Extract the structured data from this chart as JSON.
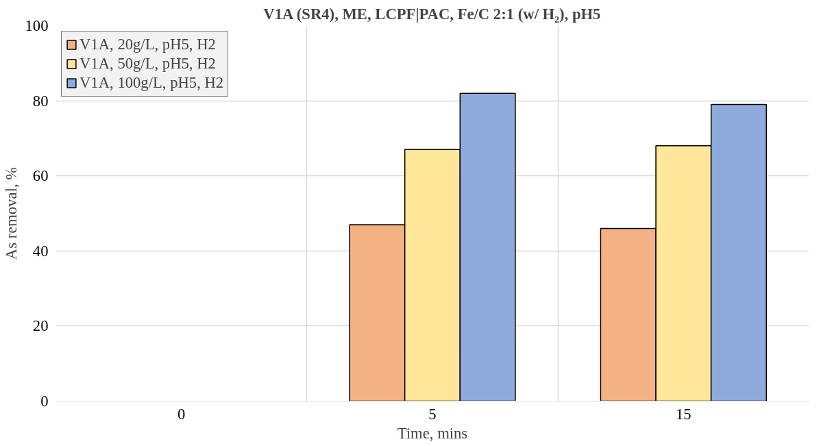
{
  "chart_data": {
    "type": "bar",
    "title": "V1A (SR4), ME, LCPF|PAC, Fe/C 2:1 (w/ H₂), pH5",
    "xlabel": "Time, mins",
    "ylabel": "As removal, %",
    "categories": [
      "0",
      "5",
      "15"
    ],
    "series": [
      {
        "name": "V1A, 20g/L, pH5, H2",
        "color": "#f4b183",
        "values": [
          null,
          47,
          46
        ]
      },
      {
        "name": "V1A, 50g/L, pH5, H2",
        "color": "#ffe699",
        "values": [
          null,
          67,
          68
        ]
      },
      {
        "name": "V1A, 100g/L, pH5, H2",
        "color": "#8faadc",
        "values": [
          null,
          82,
          79
        ]
      }
    ],
    "ylim": [
      0,
      100
    ],
    "yticks": [
      0,
      20,
      40,
      60,
      80,
      100
    ],
    "grid": true,
    "legend": "top left"
  }
}
